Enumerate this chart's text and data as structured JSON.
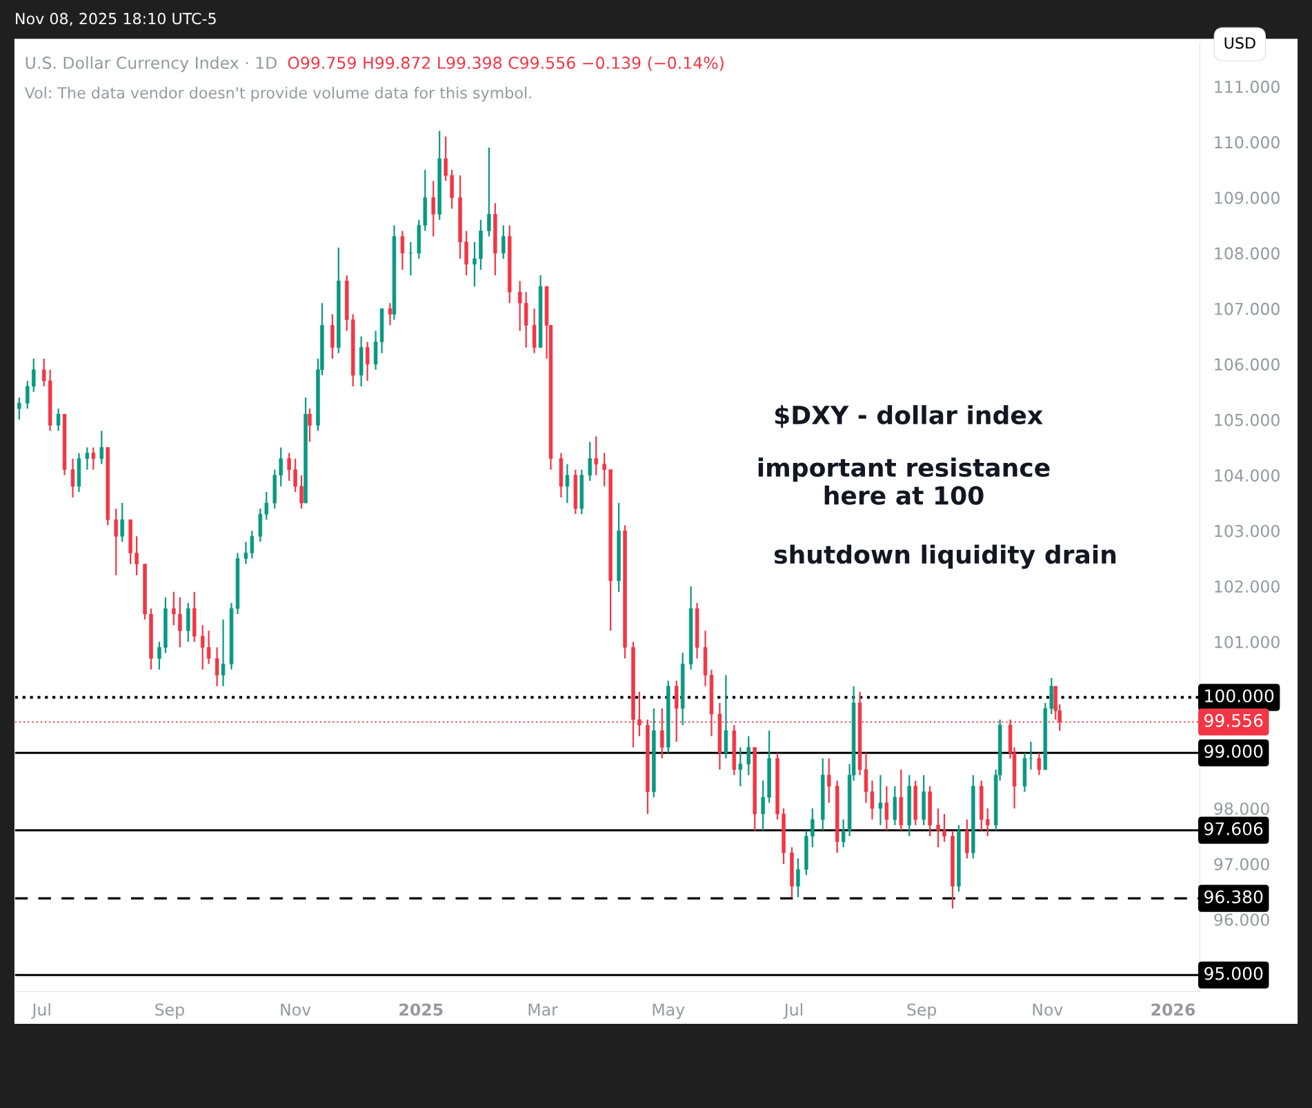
{
  "chart_data": {
    "type": "candlestick",
    "title": "U.S. Dollar Currency Index · 1D",
    "annotations": [
      "O99.759 H99.872 L99.398 C99.556 −0.139 (−0.14%)",
      "Vol: The data vendor doesn't provide volume data for this symbol.",
      "USD",
      "$DXY - dollar index",
      "important resistance\nhere at 100",
      "shutdown liquidity drain",
      "Nov 08, 2025 18:10 UTC-5"
    ],
    "colors": [
      "#089981",
      "#089981",
      "#089981",
      "#f23645",
      "#f23645",
      "#089981",
      "#f23645",
      "#f23645",
      "#089981",
      "#089981",
      "#f23645",
      "#089981",
      "#f23645",
      "#f23645",
      "#089981",
      "#f23645",
      "#f23645",
      "#f23645",
      "#f23645",
      "#089981",
      "#089981",
      "#f23645",
      "#f23645",
      "#089981",
      "#f23645",
      "#f23645",
      "#f23645",
      "#f23645",
      "#089981",
      "#089981",
      "#089981",
      "#089981",
      "#089981",
      "#089981",
      "#089981",
      "#089981",
      "#089981",
      "#f23645",
      "#f23645",
      "#f23645",
      "#089981",
      "#f23645",
      "#089981",
      "#089981",
      "#f23645",
      "#089981",
      "#f23645",
      "#f23645",
      "#089981",
      "#f23645",
      "#089981",
      "#089981",
      "#f23645",
      "#089981",
      "#f23645",
      "#089981",
      "#089981",
      "#089981",
      "#f23645",
      "#089981",
      "#f23645",
      "#f23645",
      "#f23645",
      "#f23645",
      "#089981",
      "#089981",
      "#089981",
      "#f23645",
      "#089981",
      "#f23645",
      "#f23645",
      "#f23645",
      "#f23645",
      "#089981",
      "#f23645",
      "#f23645",
      "#f23645",
      "#089981",
      "#f23645",
      "#089981",
      "#089981",
      "#f23645",
      "#f23645",
      "#f23645",
      "#089981",
      "#f23645",
      "#f23645",
      "#f23645",
      "#f23645",
      "#089981",
      "#f23645",
      "#089981",
      "#f23645",
      "#089981",
      "#089981",
      "#f23645",
      "#f23645",
      "#f23645",
      "#f23645",
      "#089981",
      "#f23645",
      "#089981",
      "#089981",
      "#f23645",
      "#089981",
      "#089981",
      "#f23645",
      "#f23645",
      "#f23645",
      "#089981",
      "#089981",
      "#089981",
      "#089981",
      "#f23645",
      "#f23645",
      "#089981",
      "#089981",
      "#089981",
      "#f23645",
      "#f23645",
      "#f23645",
      "#089981",
      "#f23645",
      "#089981",
      "#f23645",
      "#089981",
      "#f23645",
      "#089981",
      "#f23645",
      "#f23645",
      "#f23645",
      "#f23645",
      "#089981",
      "#f23645",
      "#089981",
      "#f23645",
      "#f23645",
      "#089981",
      "#089981",
      "#f23645",
      "#f23645",
      "#089981",
      "#089981",
      "#f23645",
      "#089981",
      "#089981",
      "#f23645",
      "#f23645"
    ],
    "xlim": [
      "2024-06-18",
      "2026-01-14"
    ],
    "xticks": [
      {
        "value": "2024-07-01",
        "label": "Jul"
      },
      {
        "value": "2024-09-01",
        "label": "Sep"
      },
      {
        "value": "2024-11-01",
        "label": "Nov"
      },
      {
        "value": "2025-01-01",
        "label": "2025"
      },
      {
        "value": "2025-03-01",
        "label": "Mar"
      },
      {
        "value": "2025-05-01",
        "label": "May"
      },
      {
        "value": "2025-07-01",
        "label": "Jul"
      },
      {
        "value": "2025-09-01",
        "label": "Sep"
      },
      {
        "value": "2025-11-01",
        "label": "Nov"
      },
      {
        "value": "2026-01-01",
        "label": "2026"
      }
    ],
    "ylim": [
      94.7,
      111.8
    ],
    "yticks": [
      {
        "value": 96,
        "label": "96.000"
      },
      {
        "value": 97,
        "label": "97.000"
      },
      {
        "value": 98,
        "label": "98.000"
      },
      {
        "value": 101,
        "label": "101.000"
      },
      {
        "value": 102,
        "label": "102.000"
      },
      {
        "value": 103,
        "label": "103.000"
      },
      {
        "value": 104,
        "label": "104.000"
      },
      {
        "value": 105,
        "label": "105.000"
      },
      {
        "value": 106,
        "label": "106.000"
      },
      {
        "value": 107,
        "label": "107.000"
      },
      {
        "value": 108,
        "label": "108.000"
      },
      {
        "value": 109,
        "label": "109.000"
      },
      {
        "value": 110,
        "label": "110.000"
      },
      {
        "value": 111,
        "label": "111.000"
      }
    ],
    "ref_lines": [
      {
        "axis": "y",
        "value": 100,
        "label": "100.000",
        "color": "#000000",
        "line_style": "dotted"
      },
      {
        "axis": "y",
        "value": 99.556,
        "label": "99.556",
        "color": "#f23645",
        "line_style": "dotted"
      },
      {
        "axis": "y",
        "value": 99,
        "label": "99.000",
        "color": "#000000",
        "line_style": "solid"
      },
      {
        "axis": "y",
        "value": 97.606,
        "label": "97.606",
        "color": "#000000",
        "line_style": "solid"
      },
      {
        "axis": "y",
        "value": 96.38,
        "label": "96.380",
        "color": "#000000",
        "line_style": "dashed"
      },
      {
        "axis": "y",
        "value": 95,
        "label": "95.000",
        "color": "#000000",
        "line_style": "solid"
      }
    ],
    "x": [
      "2024-06-20",
      "2024-06-24",
      "2024-06-27",
      "2024-07-02",
      "2024-07-05",
      "2024-07-09",
      "2024-07-12",
      "2024-07-16",
      "2024-07-19",
      "2024-07-23",
      "2024-07-26",
      "2024-07-30",
      "2024-08-02",
      "2024-08-06",
      "2024-08-09",
      "2024-08-13",
      "2024-08-16",
      "2024-08-20",
      "2024-08-23",
      "2024-08-27",
      "2024-08-30",
      "2024-09-03",
      "2024-09-06",
      "2024-09-10",
      "2024-09-13",
      "2024-09-17",
      "2024-09-20",
      "2024-09-24",
      "2024-09-27",
      "2024-10-01",
      "2024-10-04",
      "2024-10-08",
      "2024-10-11",
      "2024-10-15",
      "2024-10-18",
      "2024-10-22",
      "2024-10-25",
      "2024-10-29",
      "2024-11-01",
      "2024-11-04",
      "2024-11-06",
      "2024-11-08",
      "2024-11-12",
      "2024-11-14",
      "2024-11-19",
      "2024-11-22",
      "2024-11-26",
      "2024-11-29",
      "2024-12-03",
      "2024-12-06",
      "2024-12-10",
      "2024-12-13",
      "2024-12-17",
      "2024-12-19",
      "2024-12-23",
      "2024-12-27",
      "2024-12-31",
      "2025-01-03",
      "2025-01-07",
      "2025-01-10",
      "2025-01-13",
      "2025-01-16",
      "2025-01-20",
      "2025-01-23",
      "2025-01-27",
      "2025-01-30",
      "2025-02-03",
      "2025-02-06",
      "2025-02-10",
      "2025-02-13",
      "2025-02-18",
      "2025-02-21",
      "2025-02-25",
      "2025-02-28",
      "2025-03-03",
      "2025-03-05",
      "2025-03-10",
      "2025-03-13",
      "2025-03-17",
      "2025-03-20",
      "2025-03-24",
      "2025-03-27",
      "2025-03-31",
      "2025-04-03",
      "2025-04-07",
      "2025-04-10",
      "2025-04-14",
      "2025-04-17",
      "2025-04-21",
      "2025-04-24",
      "2025-04-28",
      "2025-05-01",
      "2025-05-05",
      "2025-05-08",
      "2025-05-12",
      "2025-05-15",
      "2025-05-19",
      "2025-05-22",
      "2025-05-26",
      "2025-05-29",
      "2025-06-02",
      "2025-06-05",
      "2025-06-09",
      "2025-06-12",
      "2025-06-16",
      "2025-06-19",
      "2025-06-23",
      "2025-06-26",
      "2025-06-30",
      "2025-07-03",
      "2025-07-07",
      "2025-07-10",
      "2025-07-15",
      "2025-07-18",
      "2025-07-22",
      "2025-07-25",
      "2025-07-28",
      "2025-07-30",
      "2025-08-02",
      "2025-08-05",
      "2025-08-08",
      "2025-08-12",
      "2025-08-15",
      "2025-08-19",
      "2025-08-22",
      "2025-08-26",
      "2025-08-29",
      "2025-09-02",
      "2025-09-05",
      "2025-09-09",
      "2025-09-12",
      "2025-09-16",
      "2025-09-19",
      "2025-09-23",
      "2025-09-26",
      "2025-09-30",
      "2025-10-03",
      "2025-10-07",
      "2025-10-09",
      "2025-10-14",
      "2025-10-16",
      "2025-10-21",
      "2025-10-24",
      "2025-10-28",
      "2025-10-31",
      "2025-11-03",
      "2025-11-05",
      "2025-11-07"
    ],
    "ohlc": [
      [
        105.2,
        105.4,
        105.0,
        105.3
      ],
      [
        105.3,
        105.7,
        105.2,
        105.6
      ],
      [
        105.6,
        106.1,
        105.5,
        105.9
      ],
      [
        105.9,
        106.1,
        105.6,
        105.7
      ],
      [
        105.7,
        105.9,
        104.8,
        104.9
      ],
      [
        104.9,
        105.2,
        104.8,
        105.1
      ],
      [
        105.1,
        105.1,
        104.0,
        104.1
      ],
      [
        104.1,
        104.3,
        103.6,
        103.8
      ],
      [
        103.8,
        104.4,
        103.7,
        104.3
      ],
      [
        104.3,
        104.5,
        104.1,
        104.4
      ],
      [
        104.4,
        104.5,
        104.1,
        104.3
      ],
      [
        104.3,
        104.8,
        104.2,
        104.5
      ],
      [
        104.5,
        104.5,
        103.1,
        103.2
      ],
      [
        103.2,
        103.4,
        102.2,
        102.9
      ],
      [
        102.9,
        103.5,
        102.8,
        103.2
      ],
      [
        103.2,
        103.2,
        102.4,
        102.6
      ],
      [
        102.6,
        102.9,
        102.2,
        102.4
      ],
      [
        102.4,
        102.4,
        101.4,
        101.5
      ],
      [
        101.5,
        101.6,
        100.5,
        100.7
      ],
      [
        100.7,
        101.0,
        100.5,
        100.9
      ],
      [
        100.9,
        101.8,
        100.8,
        101.6
      ],
      [
        101.6,
        101.9,
        101.3,
        101.5
      ],
      [
        101.5,
        101.8,
        100.9,
        101.2
      ],
      [
        101.2,
        101.7,
        101.0,
        101.6
      ],
      [
        101.6,
        101.9,
        101.0,
        101.1
      ],
      [
        101.1,
        101.3,
        100.5,
        100.9
      ],
      [
        100.9,
        101.2,
        100.6,
        100.7
      ],
      [
        100.7,
        100.9,
        100.2,
        100.4
      ],
      [
        100.4,
        101.4,
        100.2,
        100.6
      ],
      [
        100.6,
        101.7,
        100.5,
        101.6
      ],
      [
        101.6,
        102.6,
        101.5,
        102.5
      ],
      [
        102.5,
        102.8,
        102.4,
        102.6
      ],
      [
        102.6,
        103.0,
        102.5,
        102.9
      ],
      [
        102.9,
        103.4,
        102.8,
        103.3
      ],
      [
        103.3,
        103.7,
        103.2,
        103.5
      ],
      [
        103.5,
        104.1,
        103.4,
        104.0
      ],
      [
        104.0,
        104.5,
        103.8,
        104.3
      ],
      [
        104.3,
        104.4,
        103.9,
        104.1
      ],
      [
        104.1,
        104.3,
        103.7,
        103.8
      ],
      [
        103.8,
        104.0,
        103.4,
        103.5
      ],
      [
        103.5,
        105.4,
        103.5,
        105.1
      ],
      [
        105.1,
        105.2,
        104.6,
        104.9
      ],
      [
        104.9,
        106.1,
        104.8,
        105.9
      ],
      [
        105.9,
        107.1,
        105.8,
        106.7
      ],
      [
        106.7,
        106.9,
        106.1,
        106.3
      ],
      [
        106.3,
        108.1,
        106.2,
        107.5
      ],
      [
        107.5,
        107.6,
        106.6,
        106.8
      ],
      [
        106.8,
        106.9,
        105.6,
        105.8
      ],
      [
        105.8,
        106.5,
        105.6,
        106.3
      ],
      [
        106.3,
        106.4,
        105.7,
        106.0
      ],
      [
        106.0,
        106.6,
        105.9,
        106.4
      ],
      [
        106.4,
        107.0,
        106.2,
        107.0
      ],
      [
        107.0,
        107.1,
        106.7,
        106.9
      ],
      [
        106.9,
        108.5,
        106.8,
        108.3
      ],
      [
        108.3,
        108.4,
        107.7,
        108.0
      ],
      [
        108.0,
        108.2,
        107.6,
        108.0
      ],
      [
        108.0,
        108.6,
        107.9,
        108.5
      ],
      [
        108.5,
        109.5,
        108.4,
        109.0
      ],
      [
        109.0,
        109.3,
        108.3,
        108.7
      ],
      [
        108.7,
        110.2,
        108.6,
        109.7
      ],
      [
        109.7,
        110.1,
        109.3,
        109.4
      ],
      [
        109.4,
        109.5,
        108.8,
        109.0
      ],
      [
        109.0,
        109.4,
        107.9,
        108.2
      ],
      [
        108.2,
        108.4,
        107.6,
        107.8
      ],
      [
        107.8,
        108.2,
        107.4,
        107.9
      ],
      [
        107.9,
        108.6,
        107.7,
        108.4
      ],
      [
        108.4,
        109.9,
        108.3,
        108.7
      ],
      [
        108.7,
        108.9,
        107.6,
        108.0
      ],
      [
        108.0,
        108.5,
        107.9,
        108.3
      ],
      [
        108.3,
        108.5,
        107.1,
        107.3
      ],
      [
        107.3,
        107.5,
        106.6,
        107.1
      ],
      [
        107.1,
        107.3,
        106.3,
        106.7
      ],
      [
        106.7,
        107.0,
        106.2,
        106.3
      ],
      [
        106.3,
        107.6,
        106.3,
        107.4
      ],
      [
        107.4,
        107.4,
        106.1,
        106.7
      ],
      [
        106.7,
        106.7,
        104.1,
        104.3
      ],
      [
        104.3,
        104.4,
        103.6,
        103.8
      ],
      [
        103.8,
        104.2,
        103.5,
        104.0
      ],
      [
        104.0,
        104.1,
        103.3,
        103.4
      ],
      [
        103.4,
        104.1,
        103.3,
        104.0
      ],
      [
        104.0,
        104.6,
        103.9,
        104.3
      ],
      [
        104.3,
        104.7,
        104.0,
        104.2
      ],
      [
        104.2,
        104.4,
        103.8,
        104.1
      ],
      [
        104.1,
        104.1,
        101.2,
        102.1
      ],
      [
        102.1,
        103.5,
        101.9,
        103.0
      ],
      [
        103.0,
        103.1,
        100.7,
        100.9
      ],
      [
        100.9,
        101.0,
        99.1,
        99.6
      ],
      [
        99.6,
        100.1,
        99.3,
        99.5
      ],
      [
        99.5,
        99.6,
        97.9,
        98.3
      ],
      [
        98.3,
        99.8,
        98.2,
        99.4
      ],
      [
        99.4,
        99.8,
        98.9,
        99.1
      ],
      [
        99.1,
        100.3,
        99.0,
        100.2
      ],
      [
        100.2,
        100.3,
        99.2,
        99.8
      ],
      [
        99.8,
        100.8,
        99.5,
        100.6
      ],
      [
        100.6,
        102.0,
        100.5,
        101.6
      ],
      [
        101.6,
        101.7,
        100.7,
        100.9
      ],
      [
        100.9,
        101.2,
        100.2,
        100.4
      ],
      [
        100.4,
        100.5,
        99.3,
        99.7
      ],
      [
        99.7,
        99.9,
        98.7,
        99.0
      ],
      [
        99.0,
        100.4,
        98.9,
        99.4
      ],
      [
        99.4,
        99.5,
        98.6,
        98.7
      ],
      [
        98.7,
        99.1,
        98.4,
        98.8
      ],
      [
        98.8,
        99.3,
        98.6,
        99.1
      ],
      [
        99.1,
        99.1,
        97.6,
        97.9
      ],
      [
        97.9,
        98.5,
        97.6,
        98.2
      ],
      [
        98.2,
        99.4,
        98.1,
        98.9
      ],
      [
        98.9,
        99.0,
        97.8,
        97.9
      ],
      [
        97.9,
        98.0,
        97.0,
        97.2
      ],
      [
        97.2,
        97.3,
        96.4,
        96.6
      ],
      [
        96.6,
        97.1,
        96.4,
        96.9
      ],
      [
        96.9,
        97.6,
        96.8,
        97.5
      ],
      [
        97.5,
        98.0,
        97.3,
        97.8
      ],
      [
        97.8,
        98.9,
        97.6,
        98.6
      ],
      [
        98.6,
        98.9,
        98.1,
        98.4
      ],
      [
        98.4,
        98.5,
        97.2,
        97.4
      ],
      [
        97.4,
        97.8,
        97.3,
        97.6
      ],
      [
        97.6,
        98.8,
        97.5,
        98.6
      ],
      [
        98.6,
        100.2,
        98.5,
        99.9
      ],
      [
        99.9,
        100.1,
        98.6,
        98.7
      ],
      [
        98.7,
        99.0,
        98.1,
        98.3
      ],
      [
        98.3,
        98.5,
        97.8,
        98.0
      ],
      [
        98.0,
        98.6,
        97.7,
        98.1
      ],
      [
        98.1,
        98.4,
        97.6,
        97.8
      ],
      [
        97.8,
        98.4,
        97.7,
        98.2
      ],
      [
        98.2,
        98.7,
        97.6,
        97.7
      ],
      [
        97.7,
        98.6,
        97.5,
        98.4
      ],
      [
        98.4,
        98.5,
        97.7,
        97.8
      ],
      [
        97.8,
        98.6,
        97.7,
        98.3
      ],
      [
        98.3,
        98.4,
        97.5,
        97.7
      ],
      [
        97.7,
        98.0,
        97.3,
        97.6
      ],
      [
        97.6,
        97.9,
        97.4,
        97.5
      ],
      [
        97.5,
        97.6,
        96.2,
        96.6
      ],
      [
        96.6,
        97.7,
        96.5,
        97.6
      ],
      [
        97.6,
        97.8,
        97.1,
        97.2
      ],
      [
        97.2,
        98.6,
        97.1,
        98.4
      ],
      [
        98.4,
        98.5,
        97.6,
        97.8
      ],
      [
        97.8,
        98.0,
        97.5,
        97.7
      ],
      [
        97.7,
        98.7,
        97.6,
        98.6
      ],
      [
        98.6,
        99.6,
        98.5,
        99.5
      ],
      [
        99.5,
        99.6,
        98.9,
        99.0
      ],
      [
        99.0,
        99.1,
        98.0,
        98.4
      ],
      [
        98.4,
        99.0,
        98.3,
        98.9
      ],
      [
        98.9,
        99.2,
        98.7,
        98.9
      ],
      [
        98.9,
        99.0,
        98.6,
        98.7
      ],
      [
        98.7,
        99.9,
        98.7,
        99.8
      ],
      [
        99.8,
        100.35,
        99.7,
        100.2
      ],
      [
        100.2,
        100.2,
        99.6,
        99.76
      ],
      [
        99.759,
        99.872,
        99.398,
        99.556
      ]
    ]
  }
}
